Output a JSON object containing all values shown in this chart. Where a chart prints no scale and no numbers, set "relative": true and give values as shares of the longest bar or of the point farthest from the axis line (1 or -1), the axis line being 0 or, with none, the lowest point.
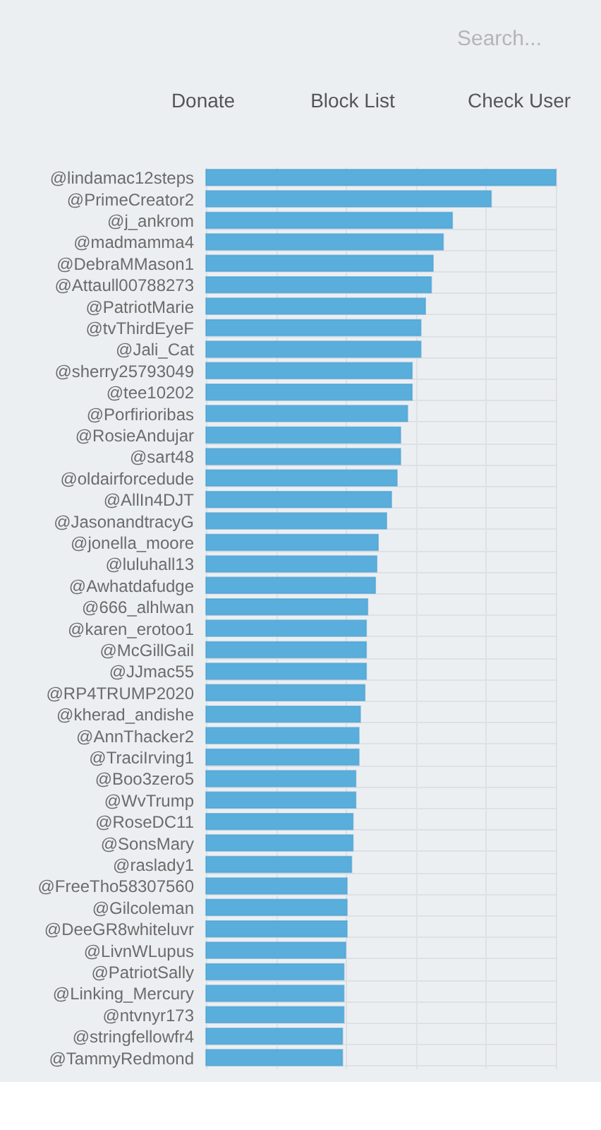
{
  "chart_data": {
    "type": "bar",
    "orientation": "horizontal",
    "relative": true,
    "grid": true,
    "categories": [
      "@lindamac12steps",
      "@PrimeCreator2",
      "@j_ankrom",
      "@madmamma4",
      "@DebraMMason1",
      "@Attaull00788273",
      "@PatriotMarie",
      "@tvThirdEyeF",
      "@Jali_Cat",
      "@sherry25793049",
      "@tee10202",
      "@Porfirioribas",
      "@RosieAndujar",
      "@sart48",
      "@oldairforcedude",
      "@AllIn4DJT",
      "@JasonandtracyG",
      "@jonella_moore",
      "@luluhall13",
      "@Awhatdafudge",
      "@666_alhlwan",
      "@karen_erotoo1",
      "@McGillGail",
      "@JJmac55",
      "@RP4TRUMP2020",
      "@kherad_andishe",
      "@AnnThacker2",
      "@TraciIrving1",
      "@Boo3zero5",
      "@WvTrump",
      "@RoseDC11",
      "@SonsMary",
      "@raslady1",
      "@FreeTho58307560",
      "@Gilcoleman",
      "@DeeGR8whiteluvr",
      "@LivnWLupus",
      "@PatriotSally",
      "@Linking_Mercury",
      "@ntvnyr173",
      "@stringfellowfr4",
      "@TammyRedmond"
    ],
    "series": [
      {
        "color": "#5aaedc",
        "values": [
          1.0,
          0.815,
          0.704,
          0.678,
          0.649,
          0.644,
          0.627,
          0.614,
          0.614,
          0.589,
          0.589,
          0.576,
          0.556,
          0.556,
          0.546,
          0.53,
          0.516,
          0.492,
          0.488,
          0.484,
          0.462,
          0.458,
          0.458,
          0.458,
          0.454,
          0.441,
          0.437,
          0.437,
          0.428,
          0.428,
          0.42,
          0.42,
          0.416,
          0.403,
          0.403,
          0.403,
          0.399,
          0.394,
          0.394,
          0.394,
          0.39,
          0.39
        ]
      }
    ],
    "annotations": [
      "Search...",
      "Donate",
      "Block List",
      "Check User"
    ]
  }
}
